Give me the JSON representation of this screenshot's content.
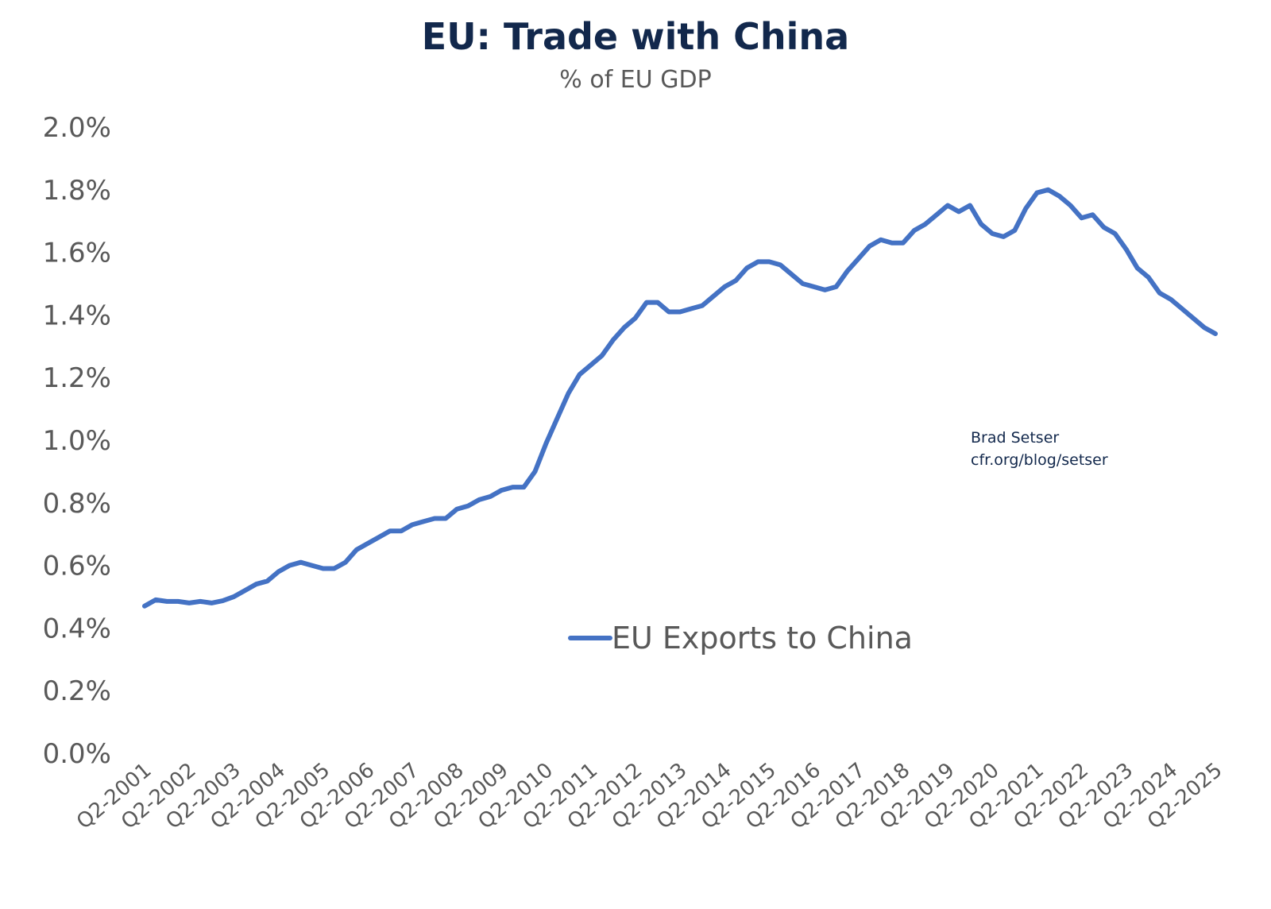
{
  "chart_data": {
    "type": "line",
    "title": "EU: Trade with China",
    "subtitle": "% of EU GDP",
    "xlabel": "",
    "ylabel": "",
    "ylim": [
      0,
      0.02
    ],
    "y_ticks": [
      0,
      0.002,
      0.004,
      0.006,
      0.008,
      0.01,
      0.012,
      0.014,
      0.016,
      0.018,
      0.02
    ],
    "y_tick_labels": [
      "0.0%",
      "0.2%",
      "0.4%",
      "0.6%",
      "0.8%",
      "1.0%",
      "1.2%",
      "1.4%",
      "1.6%",
      "1.8%",
      "2.0%"
    ],
    "x_tick_labels": [
      "Q2-2001",
      "Q2-2002",
      "Q2-2003",
      "Q2-2004",
      "Q2-2005",
      "Q2-2006",
      "Q2-2007",
      "Q2-2008",
      "Q2-2009",
      "Q2-2010",
      "Q2-2011",
      "Q2-2012",
      "Q2-2013",
      "Q2-2014",
      "Q2-2015",
      "Q2-2016",
      "Q2-2017",
      "Q2-2018",
      "Q2-2019",
      "Q2-2020",
      "Q2-2021",
      "Q2-2022",
      "Q2-2023",
      "Q2-2024",
      "Q2-2025"
    ],
    "grid": false,
    "legend_position": "center",
    "series": [
      {
        "name": "EU Exports to China",
        "color": "#4472C4",
        "start_period": "Q2-2001",
        "frequency": "quarterly",
        "values": [
          0.0047,
          0.0049,
          0.00485,
          0.00485,
          0.0048,
          0.00485,
          0.0048,
          0.00487,
          0.005,
          0.0052,
          0.0054,
          0.0055,
          0.0058,
          0.006,
          0.0061,
          0.006,
          0.0059,
          0.0059,
          0.0061,
          0.0065,
          0.0067,
          0.0069,
          0.0071,
          0.0071,
          0.0073,
          0.0074,
          0.0075,
          0.0075,
          0.0078,
          0.0079,
          0.0081,
          0.0082,
          0.0084,
          0.0085,
          0.0085,
          0.009,
          0.0099,
          0.0107,
          0.0115,
          0.0121,
          0.0124,
          0.0127,
          0.0132,
          0.0136,
          0.0139,
          0.0144,
          0.0144,
          0.0141,
          0.0141,
          0.0142,
          0.0143,
          0.0146,
          0.0149,
          0.0151,
          0.0155,
          0.0157,
          0.0157,
          0.0156,
          0.0153,
          0.015,
          0.0149,
          0.0148,
          0.0149,
          0.0154,
          0.0158,
          0.0162,
          0.0164,
          0.0163,
          0.0163,
          0.0167,
          0.0169,
          0.0172,
          0.0175,
          0.0173,
          0.0175,
          0.0169,
          0.0166,
          0.0165,
          0.0167,
          0.0174,
          0.0179,
          0.018,
          0.0178,
          0.0175,
          0.0171,
          0.0172,
          0.0168,
          0.0166,
          0.0161,
          0.0155,
          0.0152,
          0.0147,
          0.0145,
          0.0142,
          0.0139,
          0.0136,
          0.0134
        ]
      }
    ],
    "annotations": [
      "Brad Setser",
      "cfr.org/blog/setser"
    ]
  },
  "colors": {
    "title": "#12284C",
    "subtitle": "#595959",
    "axis_text": "#595959",
    "legend_text": "#595959",
    "credit": "#12284C",
    "line": "#4472C4",
    "background": "#ffffff"
  }
}
